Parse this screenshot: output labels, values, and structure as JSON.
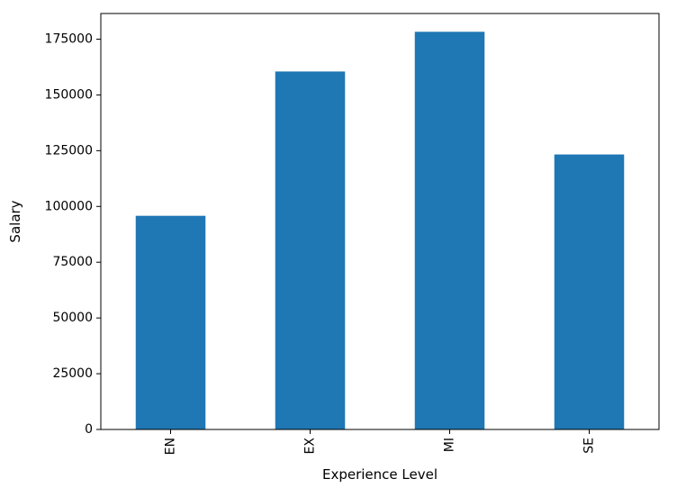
{
  "chart_data": {
    "type": "bar",
    "title": "",
    "xlabel": "Experience Level",
    "ylabel": "Salary",
    "categories": [
      "EN",
      "EX",
      "MI",
      "SE"
    ],
    "values": [
      95800,
      160500,
      178300,
      123300
    ],
    "ylim": [
      0,
      186500
    ],
    "yticks": [
      0,
      25000,
      50000,
      75000,
      100000,
      125000,
      150000,
      175000
    ],
    "ytick_labels": [
      "0",
      "25000",
      "50000",
      "75000",
      "100000",
      "125000",
      "150000",
      "175000"
    ],
    "bar_color": "#1f77b4",
    "grid": false,
    "legend": "none"
  }
}
